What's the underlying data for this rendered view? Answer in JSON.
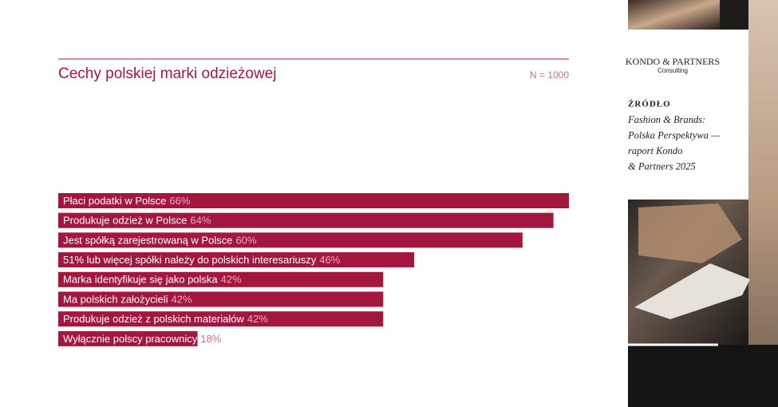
{
  "chart_data": {
    "type": "bar",
    "orientation": "horizontal",
    "title": "Cechy polskiej marki odzieżowej",
    "subtitle": "N = 1000",
    "categories": [
      "Płaci podatki w Polsce",
      "Produkuje odzież w Polsce",
      "Jest spółką zarejestrowaną w Polsce",
      "51% lub więcej spółki należy do polskich interesariuszy",
      "Marka identyfikuje się jako polska",
      "Ma polskich założycieli",
      "Produkuje odzież z polskich materiałów",
      "Wyłącznie polscy pracownicy"
    ],
    "values": [
      66,
      64,
      60,
      46,
      42,
      42,
      42,
      18
    ],
    "value_labels": [
      "66%",
      "64%",
      "60%",
      "46%",
      "42%",
      "42%",
      "42%",
      "18%"
    ],
    "color": "#a3173f",
    "xlim": [
      0,
      66
    ]
  },
  "sidebar": {
    "brand": "KONDO & PARTNERS",
    "brand_sub": "Consulting",
    "source_heading": "ŹRÓDŁO",
    "source_lines": [
      "Fashion & Brands:",
      "Polska Perspektywa —",
      "raport Kondo",
      "& Partners 2025"
    ]
  }
}
